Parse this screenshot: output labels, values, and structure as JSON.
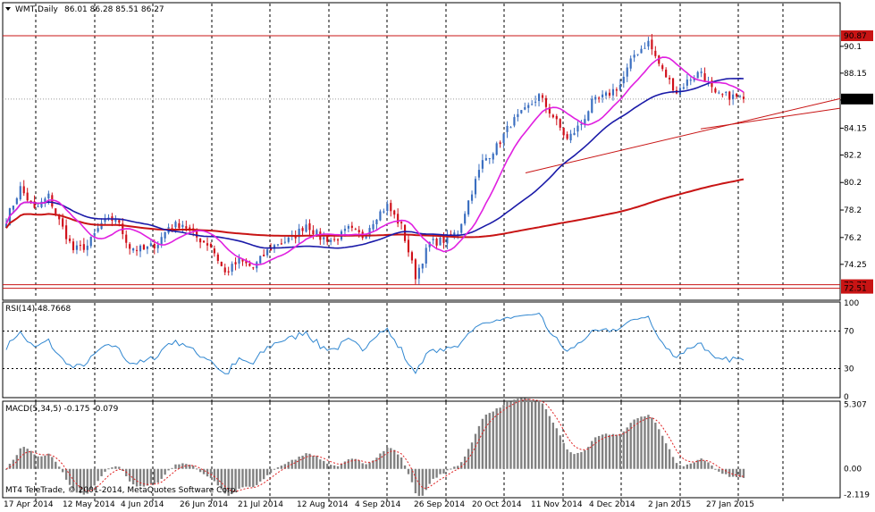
{
  "header": {
    "symbol": "WMT,Daily",
    "ohlc": "86.01 86.28 85.51 86.27"
  },
  "main": {
    "yticks": [
      90.1,
      88.15,
      86.2,
      84.15,
      82.2,
      80.2,
      78.2,
      76.2,
      74.25
    ],
    "ylim": [
      71.9,
      92.3
    ],
    "levels": {
      "resistance": "90.87",
      "support_high": "72.77",
      "support_low": "72.51",
      "current": "86.27"
    }
  },
  "rsi": {
    "label": "RSI(14) 48.7668",
    "ticks": [
      "100",
      "70",
      "30",
      "0"
    ]
  },
  "macd": {
    "label": "MACD(5,34,5) -0.175 -0.079",
    "ticks": [
      "5.307",
      "0.00",
      "-2.119"
    ],
    "ylim": [
      -2.3,
      5.5
    ]
  },
  "copyright": "MT4 TeleTrade, © 2001-2014, MetaQuotes Software Corp.",
  "xlabels": [
    "17 Apr 2014",
    "12 May 2014",
    "4 Jun 2014",
    "26 Jun 2014",
    "21 Jul 2014",
    "12 Aug 2014",
    "4 Sep 2014",
    "26 Sep 2014",
    "20 Oct 2014",
    "11 Nov 2014",
    "4 Dec 2014",
    "2 Jan 2015",
    "27 Jan 2015"
  ],
  "colors": {
    "bull": "#3a6ec0",
    "bear": "#d0101a",
    "ma_fast": "#e020e0",
    "ma_mid": "#1a1aa8",
    "ma_slow": "#c81414",
    "rsi": "#2f86d0",
    "macd_bar": "#808080",
    "signal": "#e02020",
    "level": "#c81414"
  },
  "chart_data": {
    "type": "candlestick",
    "anchors": [
      [
        "17 Apr 2014",
        77.5
      ],
      [
        "22 Apr 2014",
        79.8
      ],
      [
        "28 Apr 2014",
        78.2
      ],
      [
        "2 May 2014",
        79.2
      ],
      [
        "8 May 2014",
        77.4
      ],
      [
        "12 May 2014",
        75.3
      ],
      [
        "20 May 2014",
        75.6
      ],
      [
        "27 May 2014",
        77.2
      ],
      [
        "4 Jun 2014",
        77.6
      ],
      [
        "10 Jun 2014",
        75.5
      ],
      [
        "17 Jun 2014",
        75.3
      ],
      [
        "23 Jun 2014",
        75.8
      ],
      [
        "26 Jun 2014",
        77.0
      ],
      [
        "2 Jul 2014",
        77.2
      ],
      [
        "9 Jul 2014",
        76.2
      ],
      [
        "15 Jul 2014",
        75.6
      ],
      [
        "21 Jul 2014",
        73.6
      ],
      [
        "28 Jul 2014",
        74.5
      ],
      [
        "4 Aug 2014",
        74.0
      ],
      [
        "12 Aug 2014",
        75.2
      ],
      [
        "19 Aug 2014",
        75.8
      ],
      [
        "27 Aug 2014",
        76.1
      ],
      [
        "4 Sep 2014",
        77.2
      ],
      [
        "10 Sep 2014",
        76.2
      ],
      [
        "17 Sep 2014",
        76.0
      ],
      [
        "22 Sep 2014",
        76.8
      ],
      [
        "26 Sep 2014",
        76.3
      ],
      [
        "2 Oct 2014",
        77.8
      ],
      [
        "8 Oct 2014",
        78.5
      ],
      [
        "14 Oct 2014",
        77.0
      ],
      [
        "16 Oct 2014",
        73.4
      ],
      [
        "20 Oct 2014",
        75.8
      ],
      [
        "24 Oct 2014",
        76.0
      ],
      [
        "29 Oct 2014",
        76.6
      ],
      [
        "3 Nov 2014",
        79.6
      ],
      [
        "7 Nov 2014",
        81.7
      ],
      [
        "11 Nov 2014",
        82.8
      ],
      [
        "14 Nov 2014",
        84.5
      ],
      [
        "18 Nov 2014",
        85.4
      ],
      [
        "24 Nov 2014",
        86.5
      ],
      [
        "28 Nov 2014",
        85.0
      ],
      [
        "4 Dec 2014",
        83.3
      ],
      [
        "10 Dec 2014",
        84.5
      ],
      [
        "16 Dec 2014",
        86.0
      ],
      [
        "22 Dec 2014",
        86.5
      ],
      [
        "29 Dec 2014",
        87.3
      ],
      [
        "2 Jan 2015",
        89.5
      ],
      [
        "7 Jan 2015",
        90.4
      ],
      [
        "12 Jan 2015",
        88.3
      ],
      [
        "16 Jan 2015",
        86.8
      ],
      [
        "21 Jan 2015",
        87.8
      ],
      [
        "27 Jan 2015",
        88.3
      ],
      [
        "2 Feb 2015",
        86.5
      ],
      [
        "6 Feb 2015",
        86.5
      ],
      [
        "12 Feb 2015",
        86.27
      ]
    ]
  }
}
